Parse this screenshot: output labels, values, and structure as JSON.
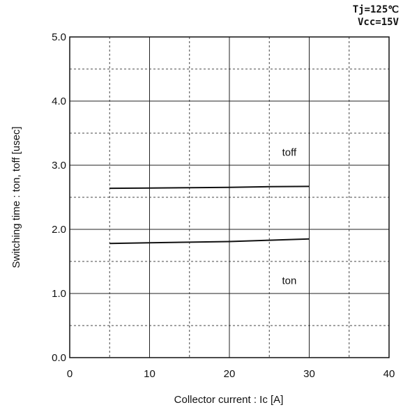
{
  "chart_data": {
    "type": "line",
    "conditions": [
      "Tj=125℃",
      "Vcc=15V"
    ],
    "xlabel": "Collector current : Ic [A]",
    "ylabel": "Switching time : ton, toff [usec]",
    "xlim": [
      0,
      40
    ],
    "ylim": [
      0,
      5.0
    ],
    "x_ticks": [
      0,
      10,
      20,
      30,
      40
    ],
    "x_tick_labels": [
      "0",
      "10",
      "20",
      "30",
      "40"
    ],
    "y_ticks": [
      0,
      1.0,
      2.0,
      3.0,
      4.0,
      5.0
    ],
    "y_tick_labels": [
      "0.0",
      "1.0",
      "2.0",
      "3.0",
      "4.0",
      "5.0"
    ],
    "x_minor_dashed": [
      5,
      15,
      25,
      35
    ],
    "y_minor_dashed": [
      0.5,
      1.5,
      2.5,
      3.5,
      4.5
    ],
    "grid": true,
    "series": [
      {
        "name": "toff",
        "x": [
          5,
          10,
          15,
          20,
          25,
          30
        ],
        "y": [
          2.64,
          2.645,
          2.65,
          2.655,
          2.665,
          2.67
        ]
      },
      {
        "name": "ton",
        "x": [
          5,
          10,
          15,
          20,
          25,
          30
        ],
        "y": [
          1.78,
          1.79,
          1.8,
          1.81,
          1.83,
          1.85
        ]
      }
    ],
    "series_label_positions": [
      {
        "series": "toff",
        "x": 27.5,
        "y": 3.2
      },
      {
        "series": "ton",
        "x": 27.5,
        "y": 1.2
      }
    ]
  }
}
